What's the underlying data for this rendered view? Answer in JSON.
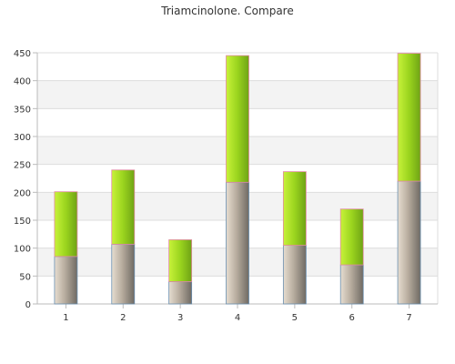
{
  "chart_data": {
    "type": "bar",
    "stacked": true,
    "title": "Triamcinolone. Compare",
    "xlabel": "",
    "ylabel": "",
    "categories": [
      "1",
      "2",
      "3",
      "4",
      "5",
      "6",
      "7"
    ],
    "series": [
      {
        "values": [
          85,
          107,
          40,
          218,
          105,
          70,
          220
        ],
        "color": "#8a8a8a"
      },
      {
        "values": [
          116,
          133,
          75,
          227,
          132,
          100,
          229
        ],
        "color": "#8fd11f"
      }
    ],
    "ylim": [
      0,
      450
    ],
    "yticks": [
      0,
      50,
      100,
      150,
      200,
      250,
      300,
      350,
      400,
      450
    ],
    "grid": true,
    "legend": "none"
  }
}
